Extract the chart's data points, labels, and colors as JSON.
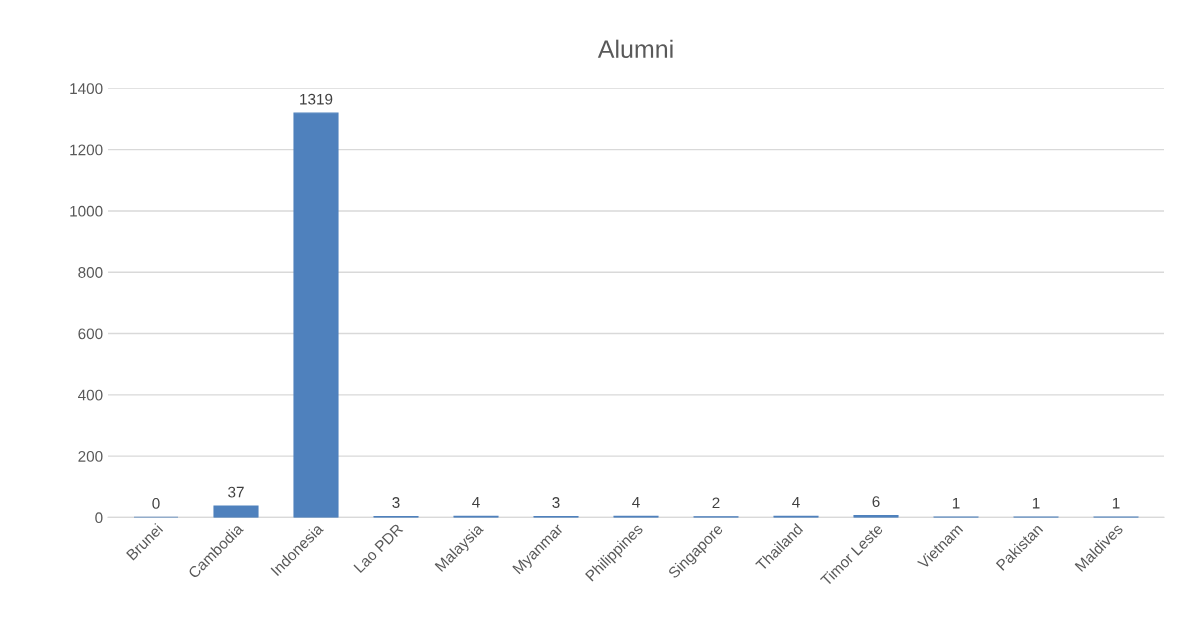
{
  "chart_data": {
    "type": "bar",
    "title": "Alumni",
    "categories": [
      "Brunei",
      "Cambodia",
      "Indonesia",
      "Lao PDR",
      "Malaysia",
      "Myanmar",
      "Philippines",
      "Singapore",
      "Thailand",
      "Timor Leste",
      "Vietnam",
      "Pakistan",
      "Maldives"
    ],
    "values": [
      0,
      37,
      1319,
      3,
      4,
      3,
      4,
      2,
      4,
      6,
      1,
      1,
      1
    ],
    "color": "#4f81bd",
    "ylim": [
      0,
      1400
    ],
    "yticks": [
      0,
      200,
      400,
      600,
      800,
      1000,
      1200,
      1400
    ],
    "grid": "y",
    "data_labels": true
  }
}
